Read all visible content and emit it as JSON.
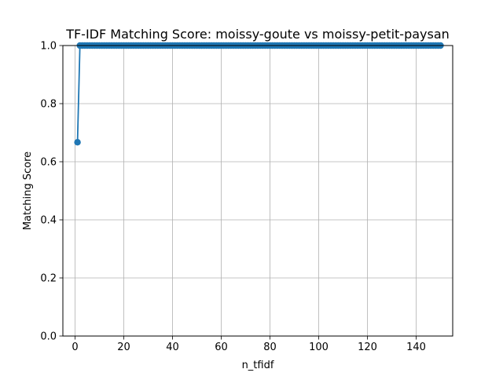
{
  "chart_data": {
    "type": "line",
    "title": "TF-IDF Matching Score: moissy-goute vs moissy-petit-paysan",
    "xlabel": "n_tfidf",
    "ylabel": "Matching Score",
    "xlim": [
      -5,
      155
    ],
    "ylim": [
      0.0,
      1.0
    ],
    "x_ticks": [
      0,
      20,
      40,
      60,
      80,
      100,
      120,
      140
    ],
    "y_ticks": [
      0.0,
      0.2,
      0.4,
      0.6,
      0.8,
      1.0
    ],
    "x_tick_labels": [
      "0",
      "20",
      "40",
      "60",
      "80",
      "100",
      "120",
      "140"
    ],
    "y_tick_labels": [
      "0.0",
      "0.2",
      "0.4",
      "0.6",
      "0.8",
      "1.0"
    ],
    "grid": true,
    "marker": "circle",
    "series": [
      {
        "color": "#1f77b4",
        "x_start": 1,
        "x_end": 150,
        "x_step": 1,
        "first_value": 0.667,
        "rest_value": 1.0
      }
    ]
  }
}
